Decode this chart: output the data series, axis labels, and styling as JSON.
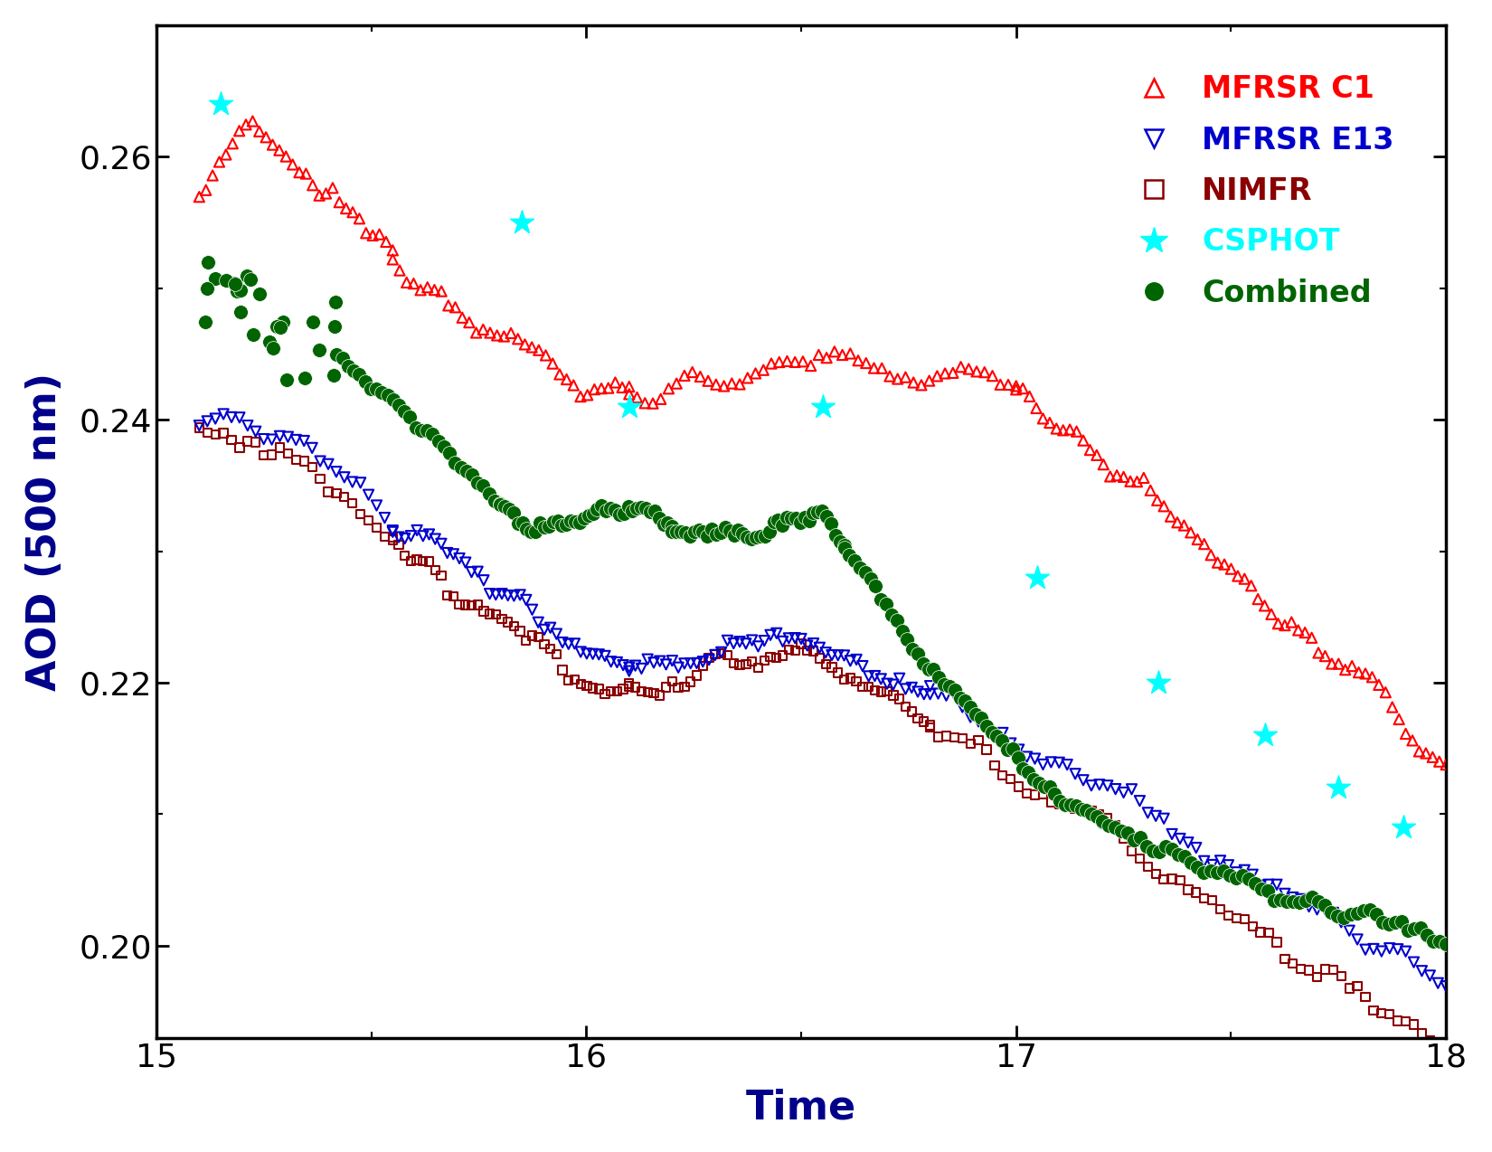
{
  "title": "",
  "xlabel": "Time",
  "ylabel": "AOD (500 nm)",
  "xlim": [
    15,
    18
  ],
  "ylim": [
    0.193,
    0.27
  ],
  "yticks": [
    0.2,
    0.22,
    0.24,
    0.26
  ],
  "xticks": [
    15,
    16,
    17,
    18
  ],
  "colors": {
    "mfrsr_c1": "#FF0000",
    "mfrsr_e13": "#0000CD",
    "nimfr": "#8B0000",
    "csphot": "#00FFFF",
    "combined": "#006400"
  },
  "legend_labels": [
    "MFRSR C1",
    "MFRSR E13",
    "NIMFR",
    "CSPHOT",
    "Combined"
  ],
  "xlabel_color": "#00008B",
  "ylabel_color": "#00008B",
  "tick_label_color": "#000000",
  "background_color": "#FFFFFF",
  "figsize": [
    16.5,
    12.74
  ],
  "dpi": 100,
  "csphot_x": [
    15.15,
    15.85,
    16.1,
    16.55,
    17.05,
    17.33,
    17.58,
    17.75,
    17.9
  ],
  "csphot_y": [
    0.264,
    0.255,
    0.241,
    0.241,
    0.228,
    0.22,
    0.216,
    0.212,
    0.209
  ]
}
